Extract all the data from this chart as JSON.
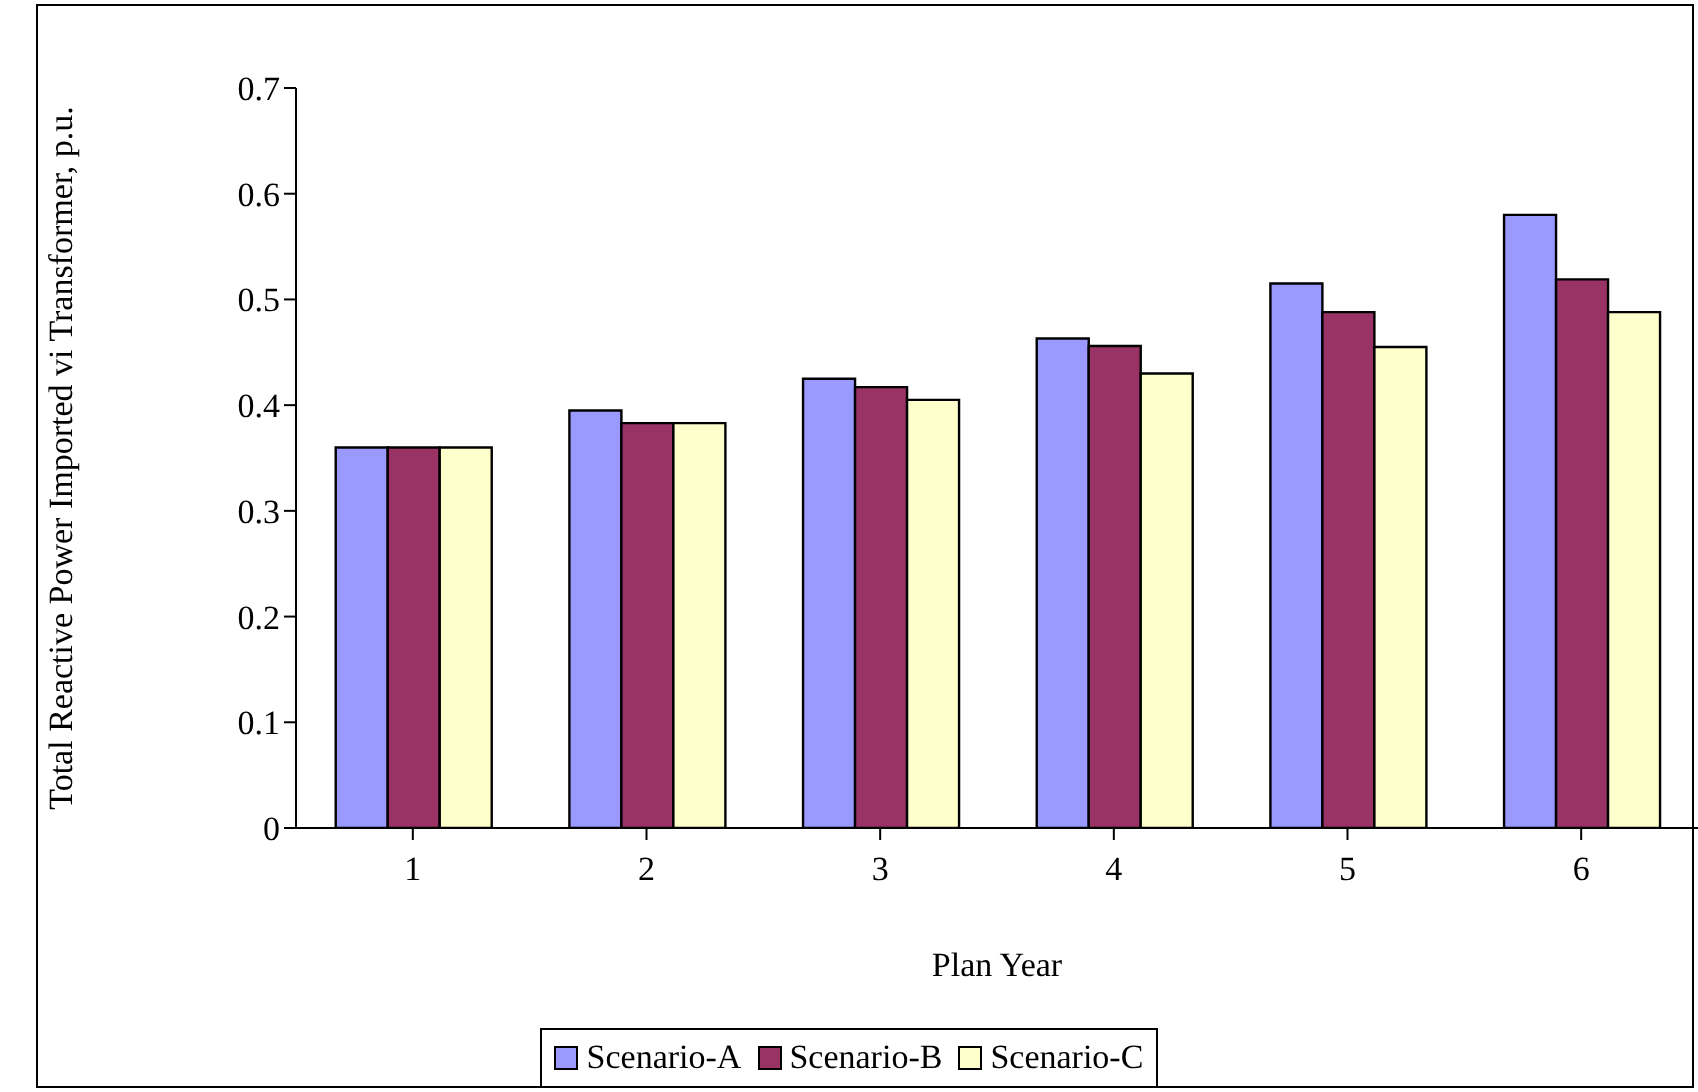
{
  "chart_data": {
    "type": "bar",
    "xlabel": "Plan Year",
    "ylabel": "Total Reactive Power Imported vi Transformer, p.u.",
    "categories": [
      "1",
      "2",
      "3",
      "4",
      "5",
      "6"
    ],
    "series": [
      {
        "name": "Scenario-A",
        "color": "#9999ff",
        "values": [
          0.36,
          0.395,
          0.425,
          0.463,
          0.515,
          0.58
        ]
      },
      {
        "name": "Scenario-B",
        "color": "#993366",
        "values": [
          0.36,
          0.383,
          0.417,
          0.456,
          0.488,
          0.519
        ]
      },
      {
        "name": "Scenario-C",
        "color": "#ffffcc",
        "values": [
          0.36,
          0.383,
          0.405,
          0.43,
          0.455,
          0.488
        ]
      }
    ],
    "ylim": [
      0,
      0.7
    ],
    "yticks": [
      0,
      0.1,
      0.2,
      0.3,
      0.4,
      0.5,
      0.6,
      0.7
    ],
    "grid": false,
    "legend": "bottom"
  }
}
